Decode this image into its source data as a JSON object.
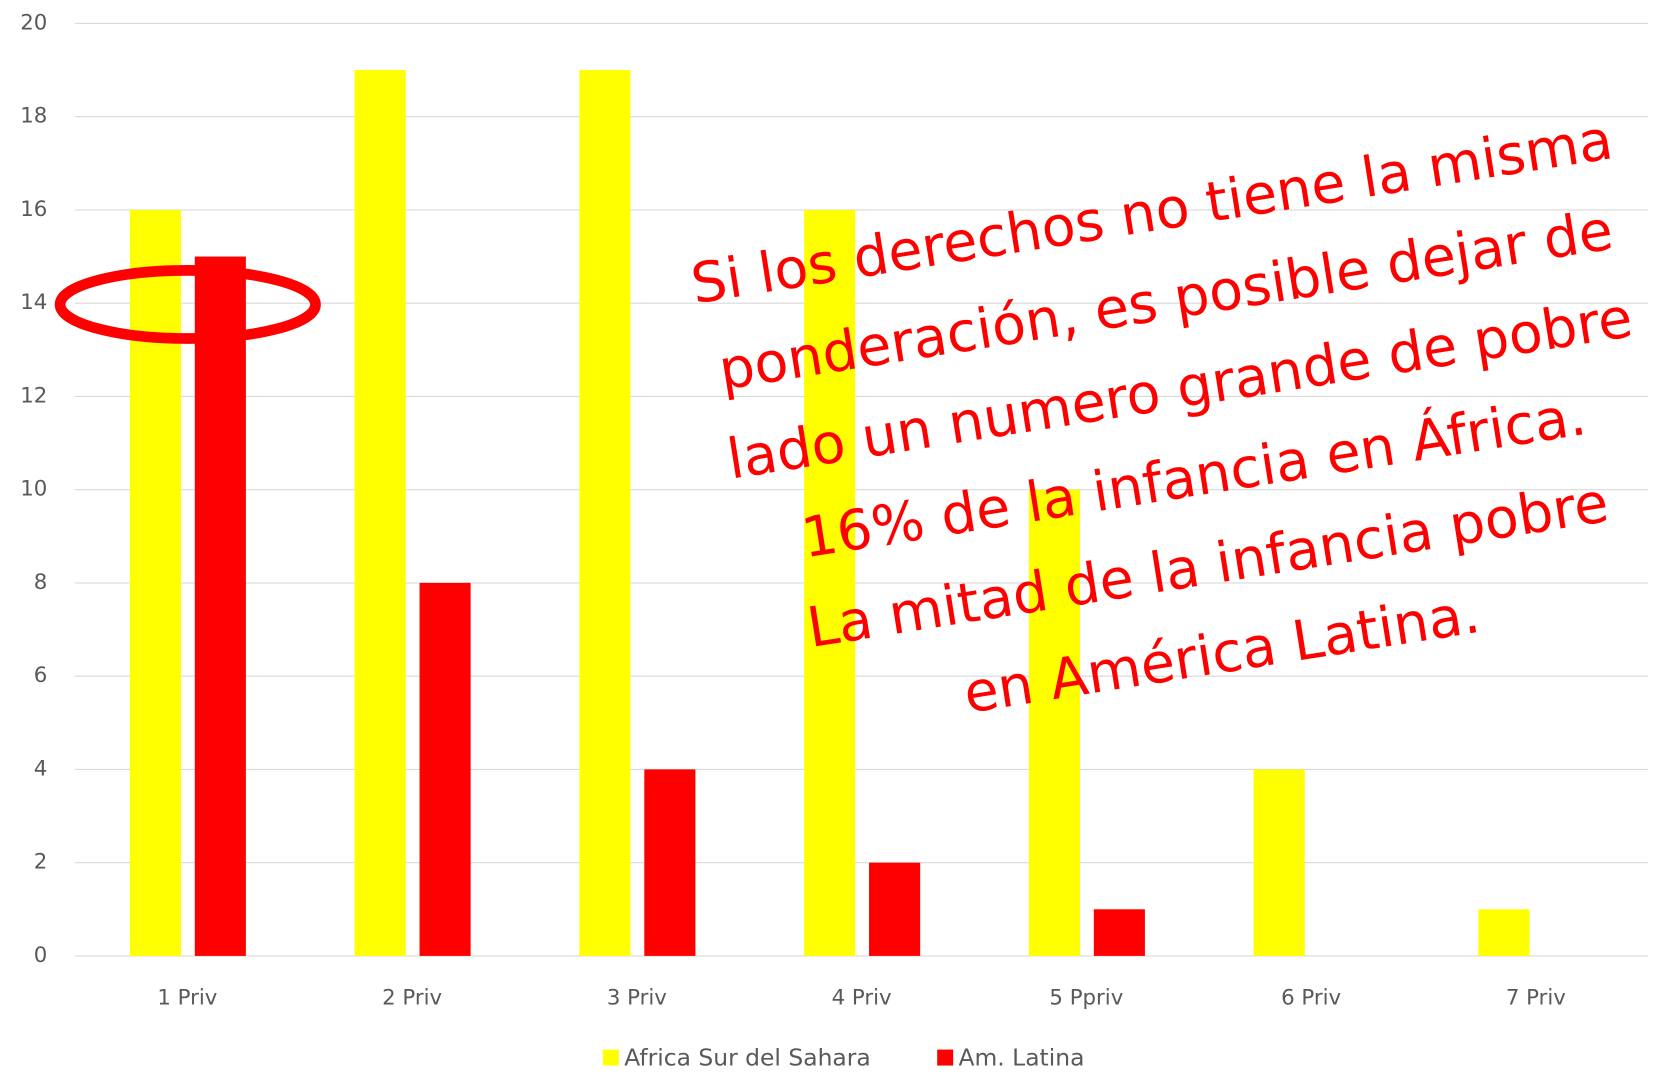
{
  "chart_data": {
    "type": "bar",
    "categories": [
      "1 Priv",
      "2 Priv",
      "3 Priv",
      "4 Priv",
      "5 Ppriv",
      "6 Priv",
      "7 Priv"
    ],
    "series": [
      {
        "name": "Africa Sur del Sahara",
        "color": "#ffff00",
        "values": [
          16,
          19,
          19,
          16,
          10,
          4,
          1
        ]
      },
      {
        "name": "Am. Latina",
        "color": "#ff0000",
        "values": [
          15,
          8,
          4,
          2,
          1,
          0,
          0
        ]
      }
    ],
    "ylim": [
      0,
      20
    ],
    "yticks": [
      0,
      2,
      4,
      6,
      8,
      10,
      12,
      14,
      16,
      18,
      20
    ],
    "grid": true,
    "legend": "bottom",
    "annotation": [
      "Si los derechos no tiene la misma",
      "ponderación, es posible dejar de",
      "lado un numero grande de pobre",
      "16% de la infancia en África.",
      "La mitad de la infancia pobre",
      "en América Latina."
    ]
  }
}
